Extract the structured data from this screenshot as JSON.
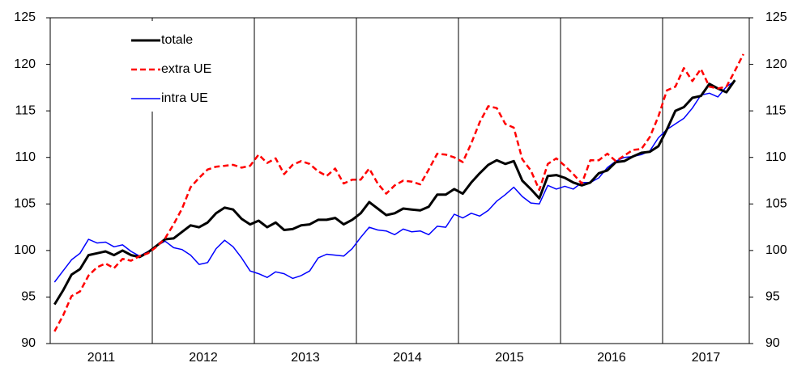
{
  "chart_data": {
    "type": "line",
    "categories": [
      "2011",
      null,
      null,
      null,
      null,
      null,
      null,
      null,
      null,
      null,
      null,
      null,
      "2012",
      null,
      null,
      null,
      null,
      null,
      null,
      null,
      null,
      null,
      null,
      null,
      "2013",
      null,
      null,
      null,
      null,
      null,
      null,
      null,
      null,
      null,
      null,
      null,
      "2014",
      null,
      null,
      null,
      null,
      null,
      null,
      null,
      null,
      null,
      null,
      null,
      "2015",
      null,
      null,
      null,
      null,
      null,
      null,
      null,
      null,
      null,
      null,
      null,
      "2016",
      null,
      null,
      null,
      null,
      null,
      null,
      null,
      null,
      null,
      null,
      null,
      "2017",
      null,
      null,
      null,
      null,
      null,
      null,
      null,
      null,
      null
    ],
    "series": [
      {
        "name": "totale",
        "color": "#000000",
        "width": 3,
        "dash": "none",
        "values": [
          94.2,
          95.7,
          97.4,
          98,
          99.5,
          99.7,
          99.9,
          99.5,
          100,
          99.5,
          99.3,
          99.8,
          100.5,
          101.2,
          101.3,
          102,
          102.7,
          102.5,
          103,
          104,
          104.6,
          104.4,
          103.4,
          102.8,
          103.2,
          102.5,
          103,
          102.2,
          102.3,
          102.7,
          102.8,
          103.3,
          103.3,
          103.5,
          102.8,
          103.3,
          104,
          105.2,
          104.5,
          103.8,
          104,
          104.5,
          104.4,
          104.3,
          104.7,
          106,
          106,
          106.6,
          106.1,
          107.3,
          108.3,
          109.2,
          109.7,
          109.3,
          109.6,
          107.5,
          106.6,
          105.6,
          108,
          108.1,
          107.8,
          107.3,
          107,
          107.3,
          108.3,
          108.6,
          109.5,
          109.6,
          110.1,
          110.5,
          110.6,
          111.2,
          113,
          115,
          115.4,
          116.4,
          116.6,
          117.9,
          117.4,
          117,
          118.3,
          null
        ]
      },
      {
        "name": "extra UE",
        "color": "#ff0000",
        "width": 2.5,
        "dash": "7 4",
        "values": [
          91.3,
          93,
          95.1,
          95.6,
          97.3,
          98.2,
          98.6,
          98.1,
          99.1,
          98.9,
          99.4,
          99.7,
          100.4,
          101.3,
          102.8,
          104.5,
          106.8,
          107.8,
          108.7,
          109,
          109.1,
          109.2,
          108.9,
          109.1,
          110.3,
          109.4,
          109.9,
          108.2,
          109.2,
          109.6,
          109.3,
          108.5,
          108,
          108.8,
          107.2,
          107.6,
          107.6,
          108.8,
          107.2,
          106.1,
          107,
          107.5,
          107.4,
          107.1,
          108.7,
          110.4,
          110.3,
          110,
          109.5,
          111.5,
          113.8,
          115.5,
          115.3,
          113.6,
          113.2,
          109.8,
          108.6,
          106.5,
          109.3,
          109.9,
          109.1,
          108.2,
          107.2,
          109.7,
          109.7,
          110.4,
          109.6,
          110.2,
          110.8,
          110.9,
          112.2,
          114.4,
          117.2,
          117.6,
          119.6,
          118.2,
          119.5,
          117.6,
          117.4,
          117.6,
          119.3,
          121.1
        ]
      },
      {
        "name": "intra UE",
        "color": "#0000ff",
        "width": 1.5,
        "dash": "none",
        "values": [
          96.6,
          97.8,
          99,
          99.7,
          101.2,
          100.8,
          100.9,
          100.4,
          100.6,
          99.9,
          99.4,
          99.9,
          100.5,
          101,
          100.3,
          100.1,
          99.5,
          98.5,
          98.7,
          100.2,
          101.1,
          100.4,
          99.2,
          97.8,
          97.5,
          97.1,
          97.7,
          97.5,
          97,
          97.3,
          97.8,
          99.2,
          99.6,
          99.5,
          99.4,
          100.2,
          101.4,
          102.5,
          102.2,
          102.1,
          101.7,
          102.3,
          102,
          102.1,
          101.7,
          102.6,
          102.5,
          103.9,
          103.5,
          104,
          103.7,
          104.3,
          105.3,
          106,
          106.8,
          105.8,
          105.1,
          105,
          107,
          106.6,
          106.9,
          106.6,
          107.3,
          107.3,
          107.8,
          108.9,
          109.6,
          110,
          110.1,
          110.3,
          110.7,
          112.1,
          113,
          113.6,
          114.2,
          115.3,
          116.7,
          116.9,
          116.5,
          117.6,
          118.2,
          null
        ]
      }
    ],
    "ylim": [
      90,
      125
    ],
    "yticks": [
      90,
      95,
      100,
      105,
      110,
      115,
      120,
      125
    ],
    "y2lim": [
      90,
      125
    ],
    "y2ticks": [
      90,
      95,
      100,
      105,
      110,
      115,
      120,
      125
    ],
    "grid": false,
    "legend": "upper left"
  }
}
